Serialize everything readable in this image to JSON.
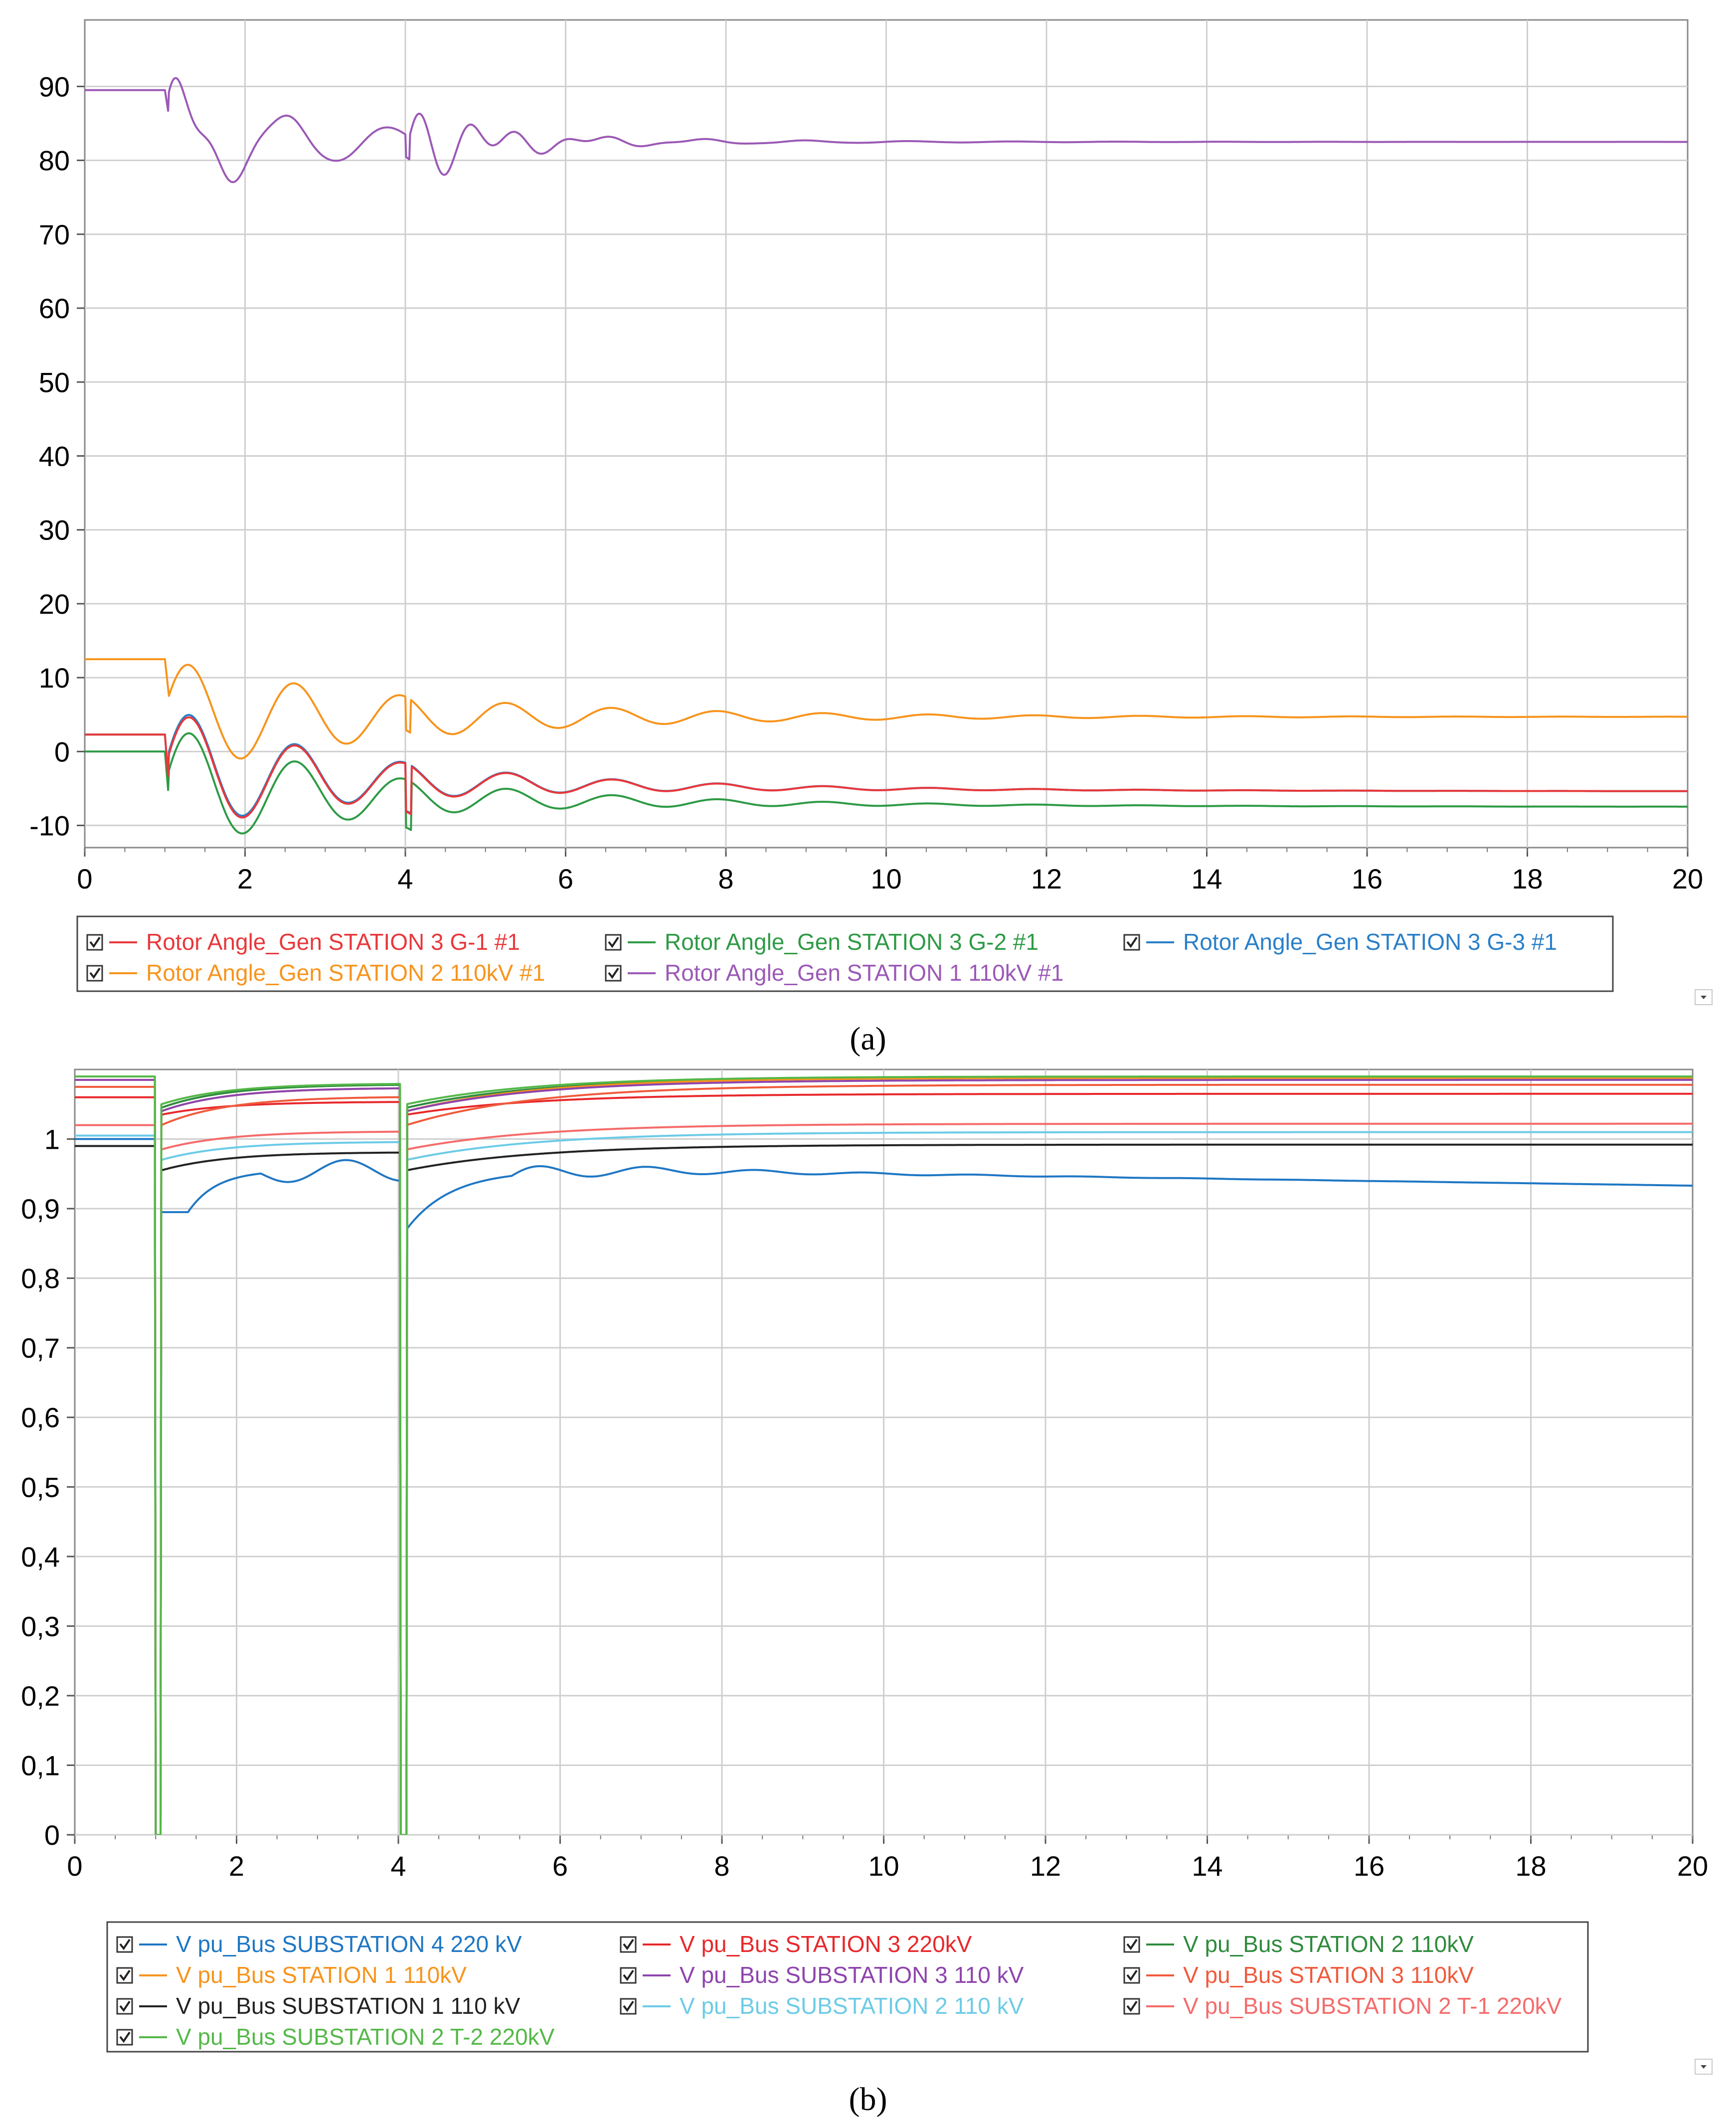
{
  "chart_data": [
    {
      "type": "line",
      "caption": "(a)",
      "xlim": [
        0,
        20
      ],
      "ylim": [
        -13,
        99
      ],
      "x_ticks": [
        "0",
        "2",
        "4",
        "6",
        "8",
        "10",
        "12",
        "14",
        "16",
        "18",
        "20"
      ],
      "y_ticks": [
        "-10",
        "0",
        "10",
        "20",
        "30",
        "40",
        "50",
        "60",
        "70",
        "80",
        "90"
      ],
      "grid": true,
      "legend_placement": "bottom",
      "series": [
        {
          "name": "Rotor Angle_Gen STATION 3 G-1 #1",
          "color": "#e8383b",
          "kind": "g1"
        },
        {
          "name": "Rotor Angle_Gen STATION 3 G-2 #1",
          "color": "#2e9a45",
          "kind": "g2"
        },
        {
          "name": "Rotor Angle_Gen STATION 3 G-3 #1",
          "color": "#2a7fc8",
          "kind": "g3"
        },
        {
          "name": "Rotor Angle_Gen STATION 2 110kV #1",
          "color": "#f7941d",
          "kind": "s2"
        },
        {
          "name": "Rotor Angle_Gen STATION 1 110kV #1",
          "color": "#9b59b6",
          "kind": "s1"
        }
      ]
    },
    {
      "type": "line",
      "caption": "(b)",
      "xlim": [
        0,
        20
      ],
      "ylim": [
        0,
        1.1
      ],
      "x_ticks": [
        "0",
        "2",
        "4",
        "6",
        "8",
        "10",
        "12",
        "14",
        "16",
        "18",
        "20"
      ],
      "y_ticks": [
        "0",
        "0,1",
        "0,2",
        "0,3",
        "0,4",
        "0,5",
        "0,6",
        "0,7",
        "0,8",
        "0,9",
        "1"
      ],
      "grid": true,
      "legend_placement": "bottom",
      "series": [
        {
          "name": "V pu_Bus SUBSTATION 4 220 kV",
          "color": "#1f77c4",
          "pre": 1.0,
          "v1": 0.895,
          "v2": 0.87,
          "final": 0.935,
          "osc": true
        },
        {
          "name": "V pu_Bus STATION 3 220kV",
          "color": "#e8282b",
          "pre": 1.06,
          "v1": 1.035,
          "v2": 1.035,
          "final": 1.065,
          "osc": false
        },
        {
          "name": "V pu_Bus STATION 2 110kV",
          "color": "#2e8b3d",
          "pre": 1.09,
          "v1": 1.045,
          "v2": 1.045,
          "final": 1.088,
          "osc": false
        },
        {
          "name": "V pu_Bus STATION 1 110kV",
          "color": "#f7941d",
          "pre": 1.085,
          "v1": 1.04,
          "v2": 1.04,
          "final": 1.088,
          "osc": false
        },
        {
          "name": "V pu_Bus SUBSTATION 3 110 kV",
          "color": "#8e44ad",
          "pre": 1.085,
          "v1": 1.04,
          "v2": 1.04,
          "final": 1.085,
          "osc": false
        },
        {
          "name": "V pu_Bus STATION 3 110kV",
          "color": "#f05a3c",
          "pre": 1.075,
          "v1": 1.02,
          "v2": 1.02,
          "final": 1.078,
          "osc": false
        },
        {
          "name": "V pu_Bus SUBSTATION 1 110 kV",
          "color": "#222222",
          "pre": 0.99,
          "v1": 0.955,
          "v2": 0.955,
          "final": 0.992,
          "osc": false
        },
        {
          "name": "V pu_Bus SUBSTATION 2 110 kV",
          "color": "#6ccbe6",
          "pre": 1.005,
          "v1": 0.97,
          "v2": 0.97,
          "final": 1.01,
          "osc": false
        },
        {
          "name": "V pu_Bus SUBSTATION 2 T-1 220kV",
          "color": "#f56b6b",
          "pre": 1.02,
          "v1": 0.985,
          "v2": 0.985,
          "final": 1.022,
          "osc": false
        },
        {
          "name": "V pu_Bus SUBSTATION 2  T-2 220kV",
          "color": "#54b848",
          "pre": 1.09,
          "v1": 1.05,
          "v2": 1.05,
          "final": 1.09,
          "osc": false
        }
      ]
    }
  ]
}
